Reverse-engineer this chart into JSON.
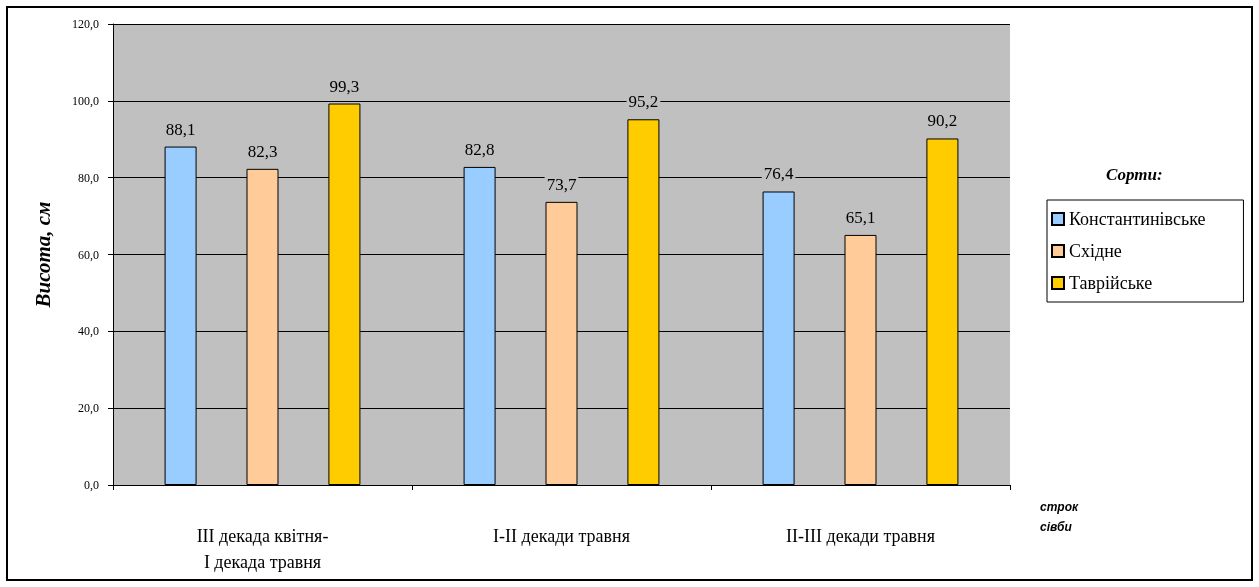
{
  "chart_data": {
    "type": "bar",
    "ylabel": "Висота, см",
    "xlabel": "строк\nсівби",
    "legend_title": "Сорти:",
    "categories": [
      "III декада квітня-\nI декада травня",
      "I-II декади травня",
      "II-III декади травня"
    ],
    "series": [
      {
        "name": "Константинівське",
        "color": "#99ccff",
        "values": [
          88.1,
          82.8,
          76.4
        ],
        "value_labels": [
          "88,1",
          "82,8",
          "76,4"
        ]
      },
      {
        "name": "Східне",
        "color": "#ffcc99",
        "values": [
          82.3,
          73.7,
          65.1
        ],
        "value_labels": [
          "82,3",
          "73,7",
          "65,1"
        ]
      },
      {
        "name": "Таврійське",
        "color": "#ffcc00",
        "values": [
          99.3,
          95.2,
          90.2
        ],
        "value_labels": [
          "99,3",
          "95,2",
          "90,2"
        ]
      }
    ],
    "ylim": [
      0,
      120
    ],
    "yticks": [
      {
        "value": 0,
        "label": "0,0"
      },
      {
        "value": 20,
        "label": "20,0"
      },
      {
        "value": 40,
        "label": "40,0"
      },
      {
        "value": 60,
        "label": "60,0"
      },
      {
        "value": 80,
        "label": "80,0"
      },
      {
        "value": 100,
        "label": "100,0"
      },
      {
        "value": 120,
        "label": "120,0"
      }
    ],
    "grid": "y",
    "legend": "right"
  }
}
